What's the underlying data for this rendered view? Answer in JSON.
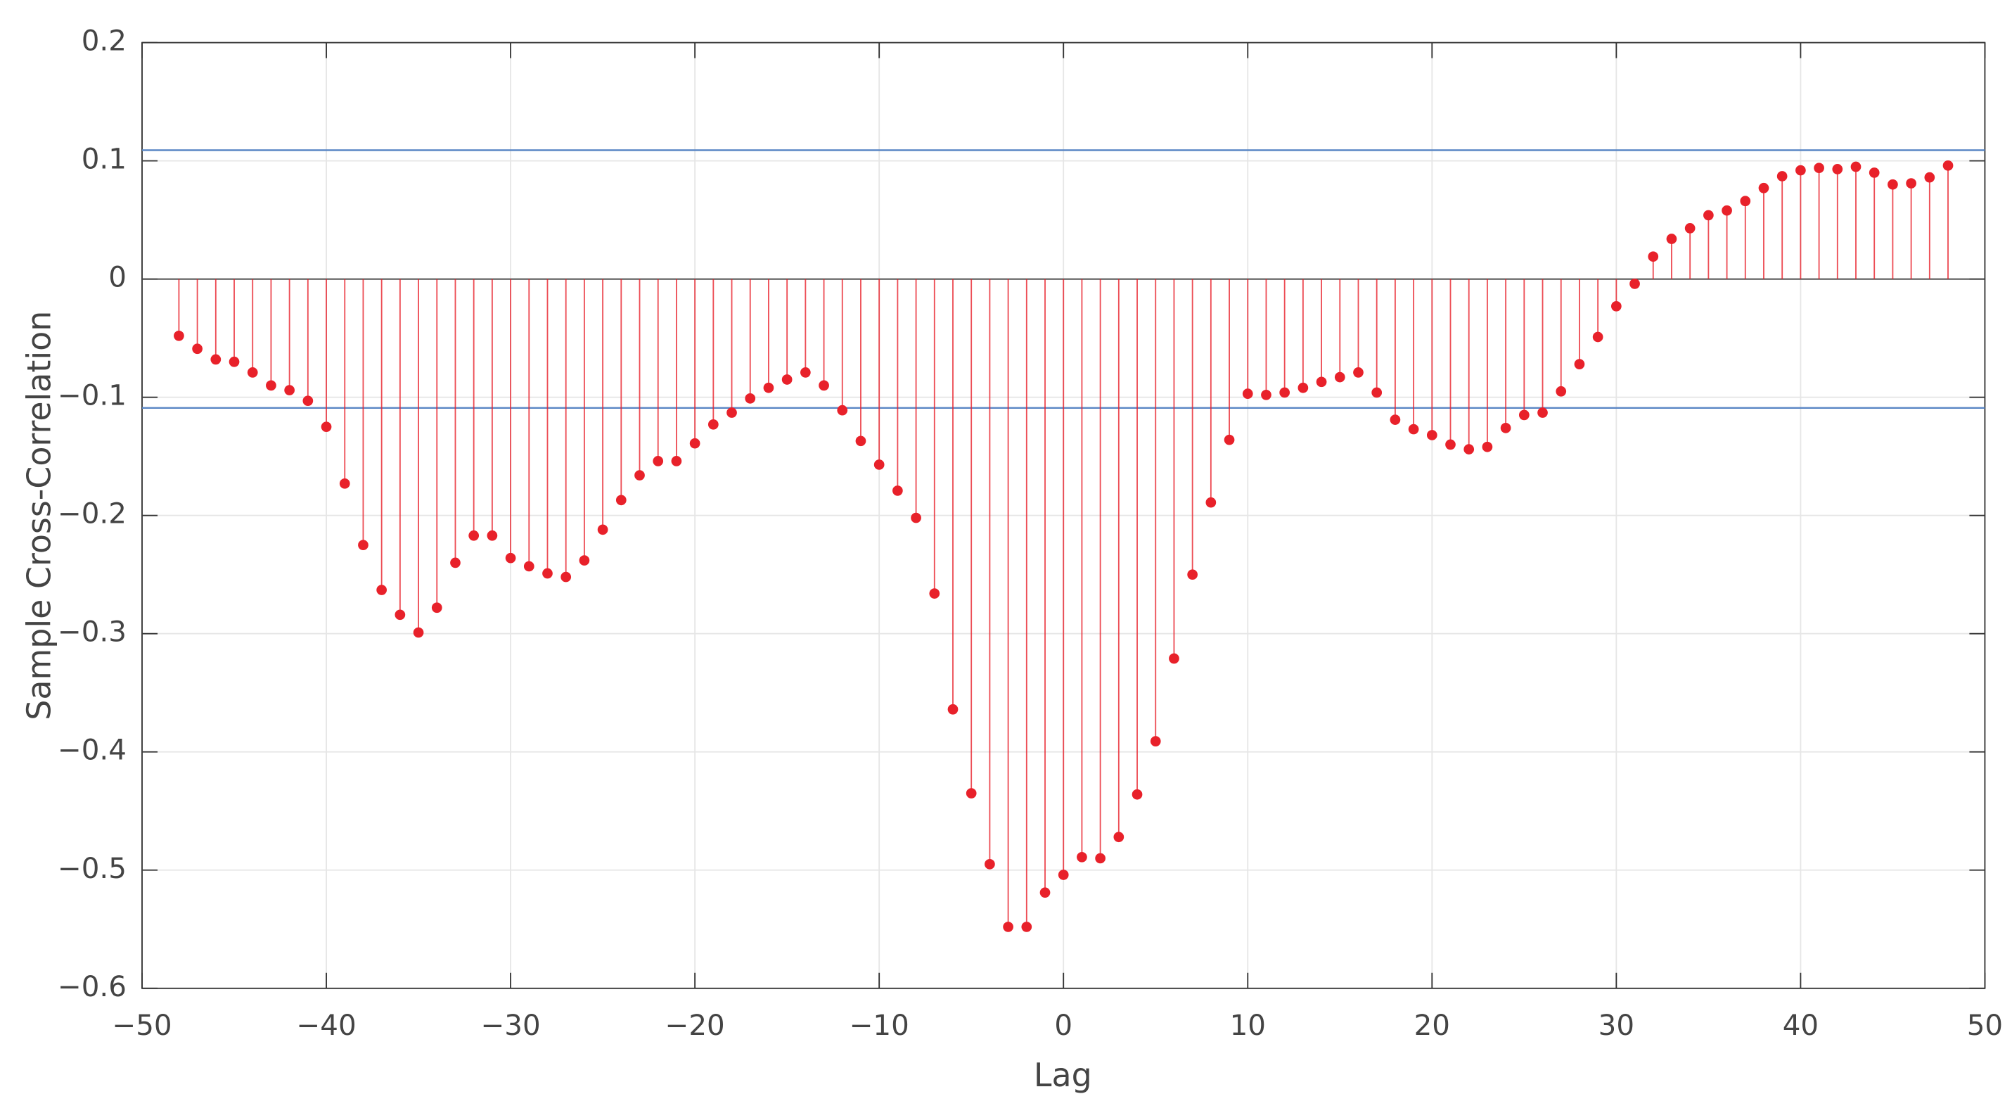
{
  "chart_data": {
    "type": "stem",
    "xlabel": "Lag",
    "ylabel": "Sample Cross-Correlation",
    "x": [
      -48,
      -47,
      -46,
      -45,
      -44,
      -43,
      -42,
      -41,
      -40,
      -39,
      -38,
      -37,
      -36,
      -35,
      -34,
      -33,
      -32,
      -31,
      -30,
      -29,
      -28,
      -27,
      -26,
      -25,
      -24,
      -23,
      -22,
      -21,
      -20,
      -19,
      -18,
      -17,
      -16,
      -15,
      -14,
      -13,
      -12,
      -11,
      -10,
      -9,
      -8,
      -7,
      -6,
      -5,
      -4,
      -3,
      -2,
      -1,
      0,
      1,
      2,
      3,
      4,
      5,
      6,
      7,
      8,
      9,
      10,
      11,
      12,
      13,
      14,
      15,
      16,
      17,
      18,
      19,
      20,
      21,
      22,
      23,
      24,
      25,
      26,
      27,
      28,
      29,
      30,
      31,
      32,
      33,
      34,
      35,
      36,
      37,
      38,
      39,
      40,
      41,
      42,
      43,
      44,
      45,
      46,
      47,
      48
    ],
    "values": [
      -0.048,
      -0.059,
      -0.068,
      -0.07,
      -0.079,
      -0.09,
      -0.094,
      -0.103,
      -0.125,
      -0.173,
      -0.225,
      -0.263,
      -0.284,
      -0.299,
      -0.278,
      -0.24,
      -0.217,
      -0.217,
      -0.236,
      -0.243,
      -0.249,
      -0.252,
      -0.238,
      -0.212,
      -0.187,
      -0.166,
      -0.154,
      -0.154,
      -0.139,
      -0.123,
      -0.113,
      -0.101,
      -0.092,
      -0.085,
      -0.079,
      -0.09,
      -0.111,
      -0.137,
      -0.157,
      -0.179,
      -0.202,
      -0.266,
      -0.364,
      -0.435,
      -0.495,
      -0.548,
      -0.548,
      -0.519,
      -0.504,
      -0.489,
      -0.49,
      -0.472,
      -0.436,
      -0.391,
      -0.321,
      -0.25,
      -0.189,
      -0.136,
      -0.097,
      -0.098,
      -0.096,
      -0.092,
      -0.087,
      -0.083,
      -0.079,
      -0.096,
      -0.119,
      -0.127,
      -0.132,
      -0.14,
      -0.144,
      -0.142,
      -0.126,
      -0.115,
      -0.113,
      -0.095,
      -0.072,
      -0.049,
      -0.023,
      -0.004,
      0.019,
      0.034,
      0.043,
      0.054,
      0.058,
      0.066,
      0.077,
      0.087,
      0.092,
      0.094,
      0.093,
      0.095,
      0.09,
      0.08,
      0.081,
      0.086,
      0.096
    ],
    "color": "#e8212a",
    "bound_color": "#5b87c5",
    "bounds": [
      0.109,
      -0.109
    ],
    "xlim": [
      -50,
      50
    ],
    "ylim": [
      -0.6,
      0.2
    ],
    "xticks": [
      {
        "value": -50,
        "label": "−50"
      },
      {
        "value": -40,
        "label": "−40"
      },
      {
        "value": -30,
        "label": "−30"
      },
      {
        "value": -20,
        "label": "−20"
      },
      {
        "value": -10,
        "label": "−10"
      },
      0,
      10,
      20,
      30,
      40,
      50
    ],
    "yticks": [
      {
        "value": -0.6,
        "label": "−0.6"
      },
      {
        "value": -0.5,
        "label": "−0.5"
      },
      {
        "value": -0.4,
        "label": "−0.4"
      },
      {
        "value": -0.3,
        "label": "−0.3"
      },
      {
        "value": -0.2,
        "label": "−0.2"
      },
      {
        "value": -0.1,
        "label": "−0.1"
      },
      0,
      0.1,
      0.2
    ],
    "grid": true
  }
}
